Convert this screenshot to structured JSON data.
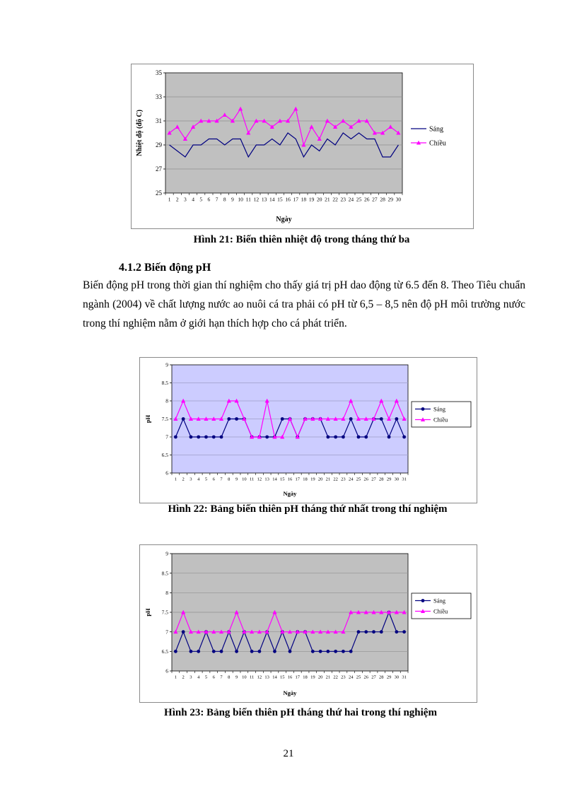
{
  "page": {
    "number": "21"
  },
  "section": {
    "heading": "4.1.2 Biến động pH",
    "paragraph": "Biến động pH trong thời gian thí nghiệm cho thấy giá trị pH dao động từ 6.5 đến 8. Theo Tiêu chuẩn ngành (2004) về chất lượng nước ao nuôi cá tra phải có pH từ 6,5 – 8,5 nên độ pH môi trường nước trong thí nghiệm nằm ở giới hạn thích hợp cho cá phát triển."
  },
  "figures": [
    {
      "caption": "Hình 21: Biến thiên nhiệt độ trong tháng thứ ba"
    },
    {
      "caption": "Hình 22: Bảng biến thiên pH tháng thứ nhất trong thí nghiệm"
    },
    {
      "caption": "Hình 23: Bảng biến thiên pH tháng thứ hai trong thí nghiệm"
    }
  ],
  "chart_data": [
    {
      "type": "line",
      "title": "",
      "xlabel": "Ngày",
      "ylabel": "Nhiệt độ (độ C)",
      "ylim": [
        25,
        35
      ],
      "yticks": [
        25,
        27,
        29,
        31,
        33,
        35
      ],
      "categories": [
        1,
        2,
        3,
        4,
        5,
        6,
        7,
        8,
        9,
        10,
        11,
        12,
        13,
        14,
        15,
        16,
        17,
        18,
        19,
        20,
        21,
        22,
        23,
        24,
        25,
        26,
        27,
        28,
        29,
        30
      ],
      "plot_bg": "#c0c0c0",
      "grid_color": "#8f8f8f",
      "legend_position": "right",
      "legend_border": false,
      "series": [
        {
          "name": "Sáng",
          "color": "#000080",
          "marker": "none",
          "values": [
            29,
            28.5,
            28,
            29,
            29,
            29.5,
            29.5,
            29,
            29.5,
            29.5,
            28,
            29,
            29,
            29.5,
            29,
            30,
            29.5,
            28,
            29,
            28.5,
            29.5,
            29,
            30,
            29.5,
            30,
            29.5,
            29.5,
            28,
            28,
            29
          ]
        },
        {
          "name": "Chiều",
          "color": "#ff00ff",
          "marker": "triangle",
          "values": [
            30,
            30.5,
            29.5,
            30.5,
            31,
            31,
            31,
            31.5,
            31,
            32,
            30,
            31,
            31,
            30.5,
            31,
            31,
            32,
            29,
            30.5,
            29.5,
            31,
            30.5,
            31,
            30.5,
            31,
            31,
            30,
            30,
            30.5,
            30
          ]
        }
      ]
    },
    {
      "type": "line",
      "title": "",
      "xlabel": "Ngày",
      "ylabel": "pH",
      "ylim": [
        6,
        9
      ],
      "yticks": [
        6,
        6.5,
        7,
        7.5,
        8,
        8.5,
        9
      ],
      "categories": [
        1,
        2,
        3,
        4,
        5,
        6,
        7,
        8,
        9,
        10,
        11,
        12,
        13,
        14,
        15,
        16,
        17,
        18,
        19,
        20,
        21,
        22,
        23,
        24,
        25,
        26,
        27,
        28,
        29,
        30,
        31
      ],
      "plot_bg": "#ccccff",
      "grid_color": "#9f9fc8",
      "legend_position": "right",
      "legend_border": true,
      "series": [
        {
          "name": "Sáng",
          "color": "#000080",
          "marker": "circle",
          "values": [
            7,
            7.5,
            7,
            7,
            7,
            7,
            7,
            7.5,
            7.5,
            7.5,
            7,
            7,
            7,
            7,
            7.5,
            7.5,
            7,
            7.5,
            7.5,
            7.5,
            7,
            7,
            7,
            7.5,
            7,
            7,
            7.5,
            7.5,
            7,
            7.5,
            7
          ]
        },
        {
          "name": "Chiều",
          "color": "#ff00ff",
          "marker": "triangle",
          "values": [
            7.5,
            8,
            7.5,
            7.5,
            7.5,
            7.5,
            7.5,
            8,
            8,
            7.5,
            7,
            7,
            8,
            7,
            7,
            7.5,
            7,
            7.5,
            7.5,
            7.5,
            7.5,
            7.5,
            7.5,
            8,
            7.5,
            7.5,
            7.5,
            8,
            7.5,
            8,
            7.5
          ]
        }
      ]
    },
    {
      "type": "line",
      "title": "",
      "xlabel": "Ngày",
      "ylabel": "pH",
      "ylim": [
        6,
        9
      ],
      "yticks": [
        6,
        6.5,
        7,
        7.5,
        8,
        8.5,
        9
      ],
      "categories": [
        1,
        2,
        3,
        4,
        5,
        6,
        7,
        8,
        9,
        10,
        11,
        12,
        13,
        14,
        15,
        16,
        17,
        18,
        19,
        20,
        21,
        22,
        23,
        24,
        25,
        26,
        27,
        28,
        29,
        30,
        31
      ],
      "plot_bg": "#c0c0c0",
      "grid_color": "#8f8f8f",
      "legend_position": "right",
      "legend_border": true,
      "series": [
        {
          "name": "Sáng",
          "color": "#000080",
          "marker": "circle",
          "values": [
            6.5,
            7,
            6.5,
            6.5,
            7,
            6.5,
            6.5,
            7,
            6.5,
            7,
            6.5,
            6.5,
            7,
            6.5,
            7,
            6.5,
            7,
            7,
            6.5,
            6.5,
            6.5,
            6.5,
            6.5,
            6.5,
            7,
            7,
            7,
            7,
            7.5,
            7,
            7
          ]
        },
        {
          "name": "Chiều",
          "color": "#ff00ff",
          "marker": "triangle",
          "values": [
            7,
            7.5,
            7,
            7,
            7,
            7,
            7,
            7,
            7.5,
            7,
            7,
            7,
            7,
            7.5,
            7,
            7,
            7,
            7,
            7,
            7,
            7,
            7,
            7,
            7.5,
            7.5,
            7.5,
            7.5,
            7.5,
            7.5,
            7.5,
            7.5
          ]
        }
      ]
    }
  ]
}
